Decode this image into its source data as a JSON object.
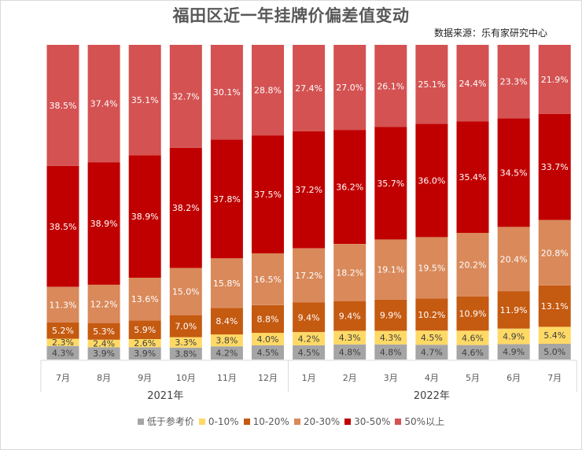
{
  "header": {
    "title": "福田区近一年挂牌价偏差值变动",
    "source": "数据来源：乐有家研究中心"
  },
  "watermark": "乐有家",
  "chart_data": {
    "type": "bar",
    "stacked": true,
    "normalized": true,
    "title": "福田区近一年挂牌价偏差值变动",
    "subtitle": "数据来源：乐有家研究中心",
    "xlabel": "",
    "ylabel": "",
    "ylim": [
      0,
      100
    ],
    "grid": false,
    "legend_position": "bottom",
    "categories": [
      "7月",
      "8月",
      "9月",
      "10月",
      "11月",
      "12月",
      "1月",
      "2月",
      "3月",
      "4月",
      "5月",
      "6月",
      "7月"
    ],
    "groups": [
      {
        "label": "2021年",
        "start": 0,
        "end": 5
      },
      {
        "label": "2022年",
        "start": 6,
        "end": 12
      }
    ],
    "series": [
      {
        "name": "低于参考价",
        "color": "#a5a5a5",
        "label_color": "#404040",
        "values": [
          4.3,
          3.9,
          3.9,
          3.8,
          4.2,
          4.5,
          4.5,
          4.8,
          4.8,
          4.7,
          4.6,
          4.9,
          5.0
        ]
      },
      {
        "name": "0-10%",
        "color": "#ffd966",
        "label_color": "#404040",
        "values": [
          2.3,
          2.4,
          2.6,
          3.3,
          3.8,
          4.0,
          4.2,
          4.3,
          4.3,
          4.5,
          4.6,
          4.9,
          5.4
        ]
      },
      {
        "name": "10-20%",
        "color": "#c55a11",
        "label_color": "#ffffff",
        "values": [
          5.2,
          5.3,
          5.9,
          7.0,
          8.4,
          8.8,
          9.4,
          9.4,
          9.9,
          10.2,
          10.9,
          11.9,
          13.1
        ]
      },
      {
        "name": "20-30%",
        "color": "#d9895a",
        "label_color": "#ffffff",
        "values": [
          11.3,
          12.2,
          13.6,
          15.0,
          15.8,
          16.5,
          17.2,
          18.2,
          19.1,
          19.5,
          20.2,
          20.4,
          20.8
        ]
      },
      {
        "name": "30-50%",
        "color": "#c00000",
        "label_color": "#ffffff",
        "values": [
          38.5,
          38.9,
          38.9,
          38.2,
          37.8,
          37.5,
          37.2,
          36.2,
          35.7,
          36.0,
          35.4,
          34.5,
          33.7
        ]
      },
      {
        "name": "50%以上",
        "color": "#d45252",
        "label_color": "#ffffff",
        "values": [
          38.5,
          37.4,
          35.1,
          32.7,
          30.1,
          28.8,
          27.4,
          27.0,
          26.1,
          25.1,
          24.4,
          23.3,
          21.9
        ]
      }
    ]
  }
}
